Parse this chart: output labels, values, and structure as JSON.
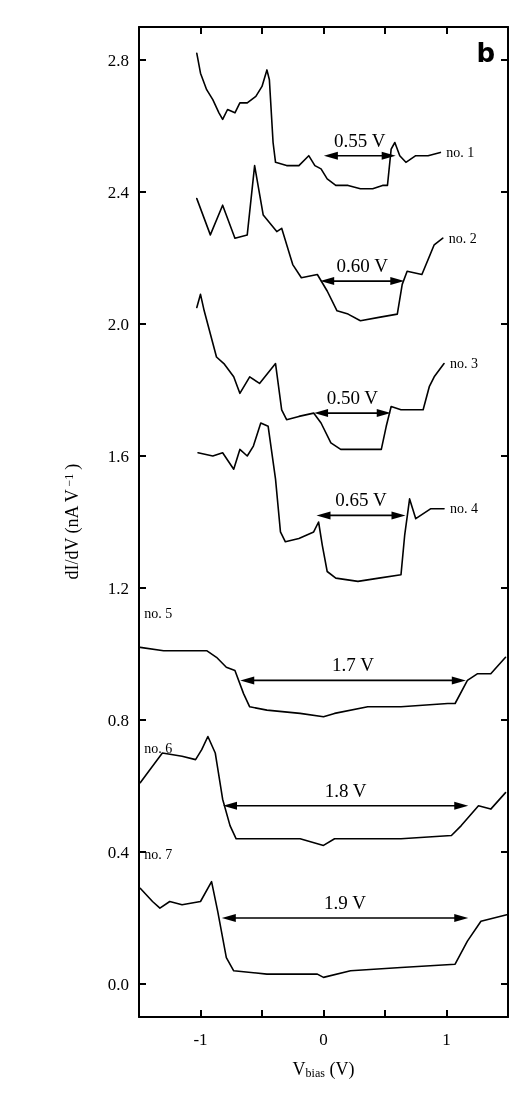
{
  "chart_data": {
    "type": "line",
    "xlabel": "V$_{bias}$ (V)",
    "ylabel": "dI/dV (nA V$^{−1}$)",
    "xlim": [
      -1.5,
      1.5
    ],
    "xticks": [
      -1,
      {
        "value": -0.5,
        "label": null
      },
      0,
      {
        "value": 0.5,
        "label": null
      },
      1
    ],
    "ylim": [
      -0.1,
      2.9
    ],
    "yticks": [
      {
        "value": 0,
        "label": "0.0"
      },
      0.4,
      0.8,
      1.2,
      1.6,
      {
        "value": 2,
        "label": "2.0"
      },
      2.4,
      2.8
    ],
    "annotations": [
      "b",
      {
        "text": "0.55 V",
        "x": 0.295,
        "y": 2.51
      },
      {
        "text": "0.60 V",
        "x": 0.315,
        "y": 2.13
      },
      {
        "text": "0.50 V",
        "x": 0.235,
        "y": 1.73
      },
      {
        "text": "0.65 V",
        "x": 0.305,
        "y": 1.42
      },
      {
        "text": "1.7 V",
        "x": 0.24,
        "y": 0.92
      },
      {
        "text": "1.8 V",
        "x": 0.18,
        "y": 0.54
      },
      {
        "text": "1.9 V",
        "x": 0.175,
        "y": 0.2
      }
    ],
    "series": [
      {
        "name": "no. 1",
        "color": "#000000",
        "x": [
          -1.03,
          -1.0,
          -0.95,
          -0.9,
          -0.85,
          -0.82,
          -0.78,
          -0.72,
          -0.68,
          -0.62,
          -0.55,
          -0.5,
          -0.46,
          -0.44,
          -0.41,
          -0.39,
          -0.3,
          -0.2,
          -0.12,
          -0.07,
          -0.02,
          0.03,
          0.1,
          0.2,
          0.3,
          0.4,
          0.48,
          0.52,
          0.55,
          0.58,
          0.62,
          0.67,
          0.75,
          0.85,
          0.95
        ],
        "values": [
          2.82,
          2.76,
          2.71,
          2.68,
          2.64,
          2.62,
          2.65,
          2.64,
          2.67,
          2.67,
          2.69,
          2.72,
          2.77,
          2.74,
          2.55,
          2.49,
          2.48,
          2.48,
          2.51,
          2.48,
          2.47,
          2.44,
          2.42,
          2.42,
          2.41,
          2.41,
          2.42,
          2.42,
          2.53,
          2.55,
          2.51,
          2.49,
          2.51,
          2.51,
          2.52
        ]
      },
      {
        "name": "no. 2",
        "color": "#000000",
        "x": [
          -1.03,
          -0.92,
          -0.82,
          -0.72,
          -0.62,
          -0.56,
          -0.49,
          -0.38,
          -0.34,
          -0.25,
          -0.18,
          -0.05,
          0.03,
          0.11,
          0.2,
          0.3,
          0.45,
          0.6,
          0.64,
          0.68,
          0.8,
          0.9,
          0.97
        ],
        "values": [
          2.38,
          2.27,
          2.36,
          2.26,
          2.27,
          2.48,
          2.33,
          2.28,
          2.29,
          2.18,
          2.14,
          2.15,
          2.1,
          2.04,
          2.03,
          2.01,
          2.02,
          2.03,
          2.12,
          2.16,
          2.15,
          2.24,
          2.26
        ]
      },
      {
        "name": "no. 3",
        "color": "#000000",
        "x": [
          -1.03,
          -1.0,
          -0.97,
          -0.87,
          -0.81,
          -0.73,
          -0.68,
          -0.6,
          -0.52,
          -0.39,
          -0.34,
          -0.3,
          -0.2,
          -0.08,
          -0.02,
          0.06,
          0.14,
          0.3,
          0.47,
          0.51,
          0.55,
          0.63,
          0.81,
          0.86,
          0.9,
          0.98
        ],
        "values": [
          2.05,
          2.09,
          2.04,
          1.9,
          1.88,
          1.84,
          1.79,
          1.84,
          1.82,
          1.88,
          1.74,
          1.71,
          1.72,
          1.73,
          1.7,
          1.64,
          1.62,
          1.62,
          1.62,
          1.69,
          1.75,
          1.74,
          1.74,
          1.81,
          1.84,
          1.88
        ]
      },
      {
        "name": "no. 4",
        "color": "#000000",
        "x": [
          -1.02,
          -0.9,
          -0.82,
          -0.73,
          -0.68,
          -0.62,
          -0.57,
          -0.51,
          -0.45,
          -0.39,
          -0.35,
          -0.31,
          -0.2,
          -0.08,
          -0.04,
          -0.01,
          0.03,
          0.1,
          0.28,
          0.45,
          0.63,
          0.66,
          0.7,
          0.75,
          0.87,
          0.98
        ],
        "values": [
          1.61,
          1.6,
          1.61,
          1.56,
          1.62,
          1.6,
          1.63,
          1.7,
          1.69,
          1.53,
          1.37,
          1.34,
          1.35,
          1.37,
          1.4,
          1.33,
          1.25,
          1.23,
          1.22,
          1.23,
          1.24,
          1.36,
          1.47,
          1.41,
          1.44,
          1.44
        ]
      },
      {
        "name": "no. 5",
        "color": "#000000",
        "x": [
          -1.49,
          -1.3,
          -1.15,
          -0.95,
          -0.87,
          -0.79,
          -0.72,
          -0.65,
          -0.6,
          -0.46,
          -0.19,
          0,
          0.09,
          0.36,
          0.63,
          1.01,
          1.07,
          1.17,
          1.25,
          1.36,
          1.48
        ],
        "values": [
          1.02,
          1.01,
          1.01,
          1.01,
          0.99,
          0.96,
          0.95,
          0.88,
          0.84,
          0.83,
          0.82,
          0.81,
          0.82,
          0.84,
          0.84,
          0.85,
          0.85,
          0.92,
          0.94,
          0.94,
          0.99
        ]
      },
      {
        "name": "no. 6",
        "color": "#000000",
        "x": [
          -1.49,
          -1.41,
          -1.31,
          -1.15,
          -1.04,
          -0.99,
          -0.94,
          -0.88,
          -0.82,
          -0.76,
          -0.71,
          -0.46,
          -0.19,
          0,
          0.09,
          0.63,
          1.04,
          1.12,
          1.26,
          1.36,
          1.48
        ],
        "values": [
          0.61,
          0.65,
          0.7,
          0.69,
          0.68,
          0.71,
          0.75,
          0.7,
          0.56,
          0.48,
          0.44,
          0.44,
          0.44,
          0.42,
          0.44,
          0.44,
          0.45,
          0.48,
          0.54,
          0.53,
          0.58
        ]
      },
      {
        "name": "no. 7",
        "color": "#000000",
        "x": [
          -1.49,
          -1.39,
          -1.33,
          -1.25,
          -1.15,
          -1.0,
          -0.91,
          -0.86,
          -0.79,
          -0.73,
          -0.46,
          -0.05,
          0,
          0.22,
          0.63,
          1.07,
          1.17,
          1.28,
          1.49
        ],
        "values": [
          0.29,
          0.25,
          0.23,
          0.25,
          0.24,
          0.25,
          0.31,
          0.22,
          0.08,
          0.04,
          0.03,
          0.03,
          0.02,
          0.04,
          0.05,
          0.06,
          0.13,
          0.19,
          0.21
        ]
      },
      {
        "color": "#000000",
        "marker": "triangle",
        "x": [
          0.06,
          0.53
        ],
        "values": [
          2.51,
          2.51
        ]
      },
      {
        "color": "#000000",
        "marker": "triangle",
        "x": [
          0.03,
          0.6
        ],
        "values": [
          2.13,
          2.13
        ]
      },
      {
        "color": "#000000",
        "marker": "triangle",
        "x": [
          -0.02,
          0.49
        ],
        "values": [
          1.73,
          1.73
        ]
      },
      {
        "color": "#000000",
        "marker": "triangle",
        "x": [
          0,
          0.61
        ],
        "values": [
          1.42,
          1.42
        ]
      },
      {
        "color": "#000000",
        "marker": "triangle",
        "x": [
          -0.62,
          1.1
        ],
        "values": [
          0.92,
          0.92
        ]
      },
      {
        "color": "#000000",
        "marker": "triangle",
        "x": [
          -0.76,
          1.12
        ],
        "values": [
          0.54,
          0.54
        ]
      },
      {
        "color": "#000000",
        "marker": "triangle",
        "x": [
          -0.77,
          1.12
        ],
        "values": [
          0.2,
          0.2
        ]
      }
    ]
  }
}
